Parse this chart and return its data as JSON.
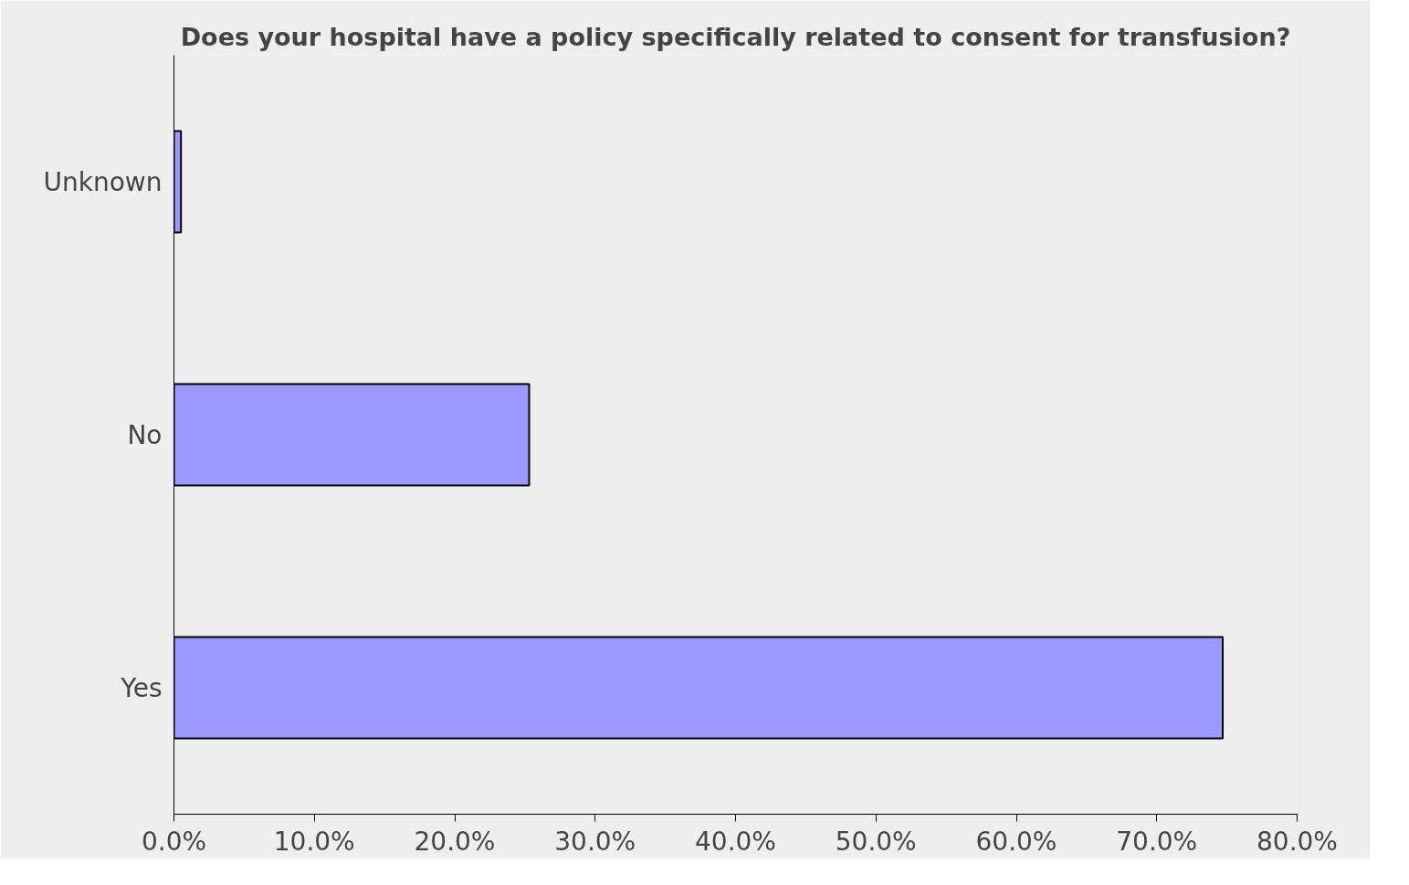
{
  "chart_data": {
    "type": "bar",
    "orientation": "horizontal",
    "title": "Does your hospital have a policy specifically related to consent for transfusion?",
    "categories": [
      "Unknown",
      "No",
      "Yes"
    ],
    "values": [
      0.5,
      25.3,
      74.7
    ],
    "color": "#9999ff",
    "xlim": [
      0,
      80
    ],
    "xticks": [
      {
        "value": 0,
        "label": "0.0%"
      },
      {
        "value": 10,
        "label": "10.0%"
      },
      {
        "value": 20,
        "label": "20.0%"
      },
      {
        "value": 30,
        "label": "30.0%"
      },
      {
        "value": 40,
        "label": "40.0%"
      },
      {
        "value": 50,
        "label": "50.0%"
      },
      {
        "value": 60,
        "label": "60.0%"
      },
      {
        "value": 70,
        "label": "70.0%"
      },
      {
        "value": 80,
        "label": "80.0%"
      }
    ],
    "grid": false
  }
}
